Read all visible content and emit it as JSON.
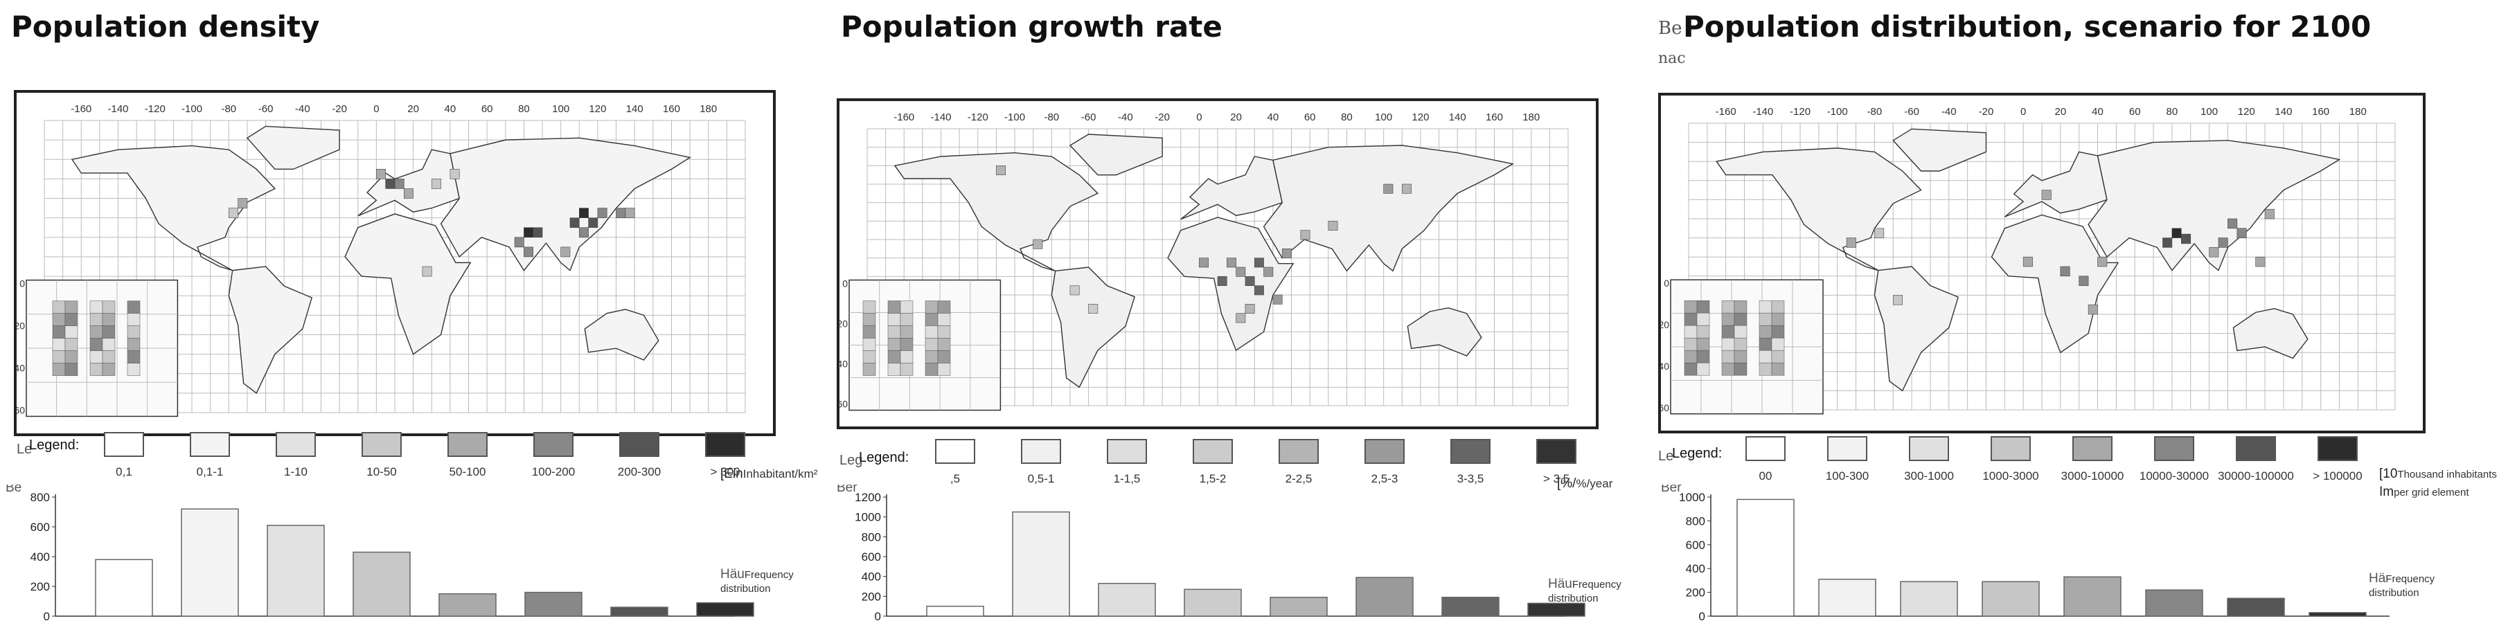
{
  "chart_data": [
    {
      "type": "map",
      "title": "Population density",
      "title_fragment": "",
      "subtitle_fragment": "",
      "map_axis_ticks": [
        "-160",
        "-140",
        "-120",
        "-100",
        "-80",
        "-60",
        "-40",
        "-20",
        "0",
        "20",
        "40",
        "60",
        "80",
        "100",
        "120",
        "140",
        "160",
        "180"
      ],
      "map_lat_ticks": [
        "0",
        "20",
        "40",
        "60"
      ],
      "legend_title": "Legend:",
      "legend_fragment": "Le",
      "legend_classes": [
        "0,1",
        "0,1-1",
        "1-10",
        "10-50",
        "50-100",
        "100-200",
        "200-300",
        "> 300"
      ],
      "unit_fragment": "[Ein",
      "unit_label": "Inhabitant/km²",
      "legend_colors": [
        "#ffffff",
        "#f4f4f4",
        "#e2e2e2",
        "#c8c8c8",
        "#aaaaaa",
        "#888888",
        "#555555",
        "#2c2c2c"
      ],
      "histogram": {
        "type": "bar",
        "fragment": "Be",
        "ylim": [
          0,
          800
        ],
        "yticks": [
          0,
          200,
          400,
          600,
          800
        ],
        "categories": [
          "0,1",
          "0,1-1",
          "1-10",
          "10-50",
          "50-100",
          "100-200",
          "200-300",
          "> 300"
        ],
        "values": [
          380,
          720,
          610,
          430,
          150,
          160,
          60,
          90
        ],
        "freq_fragment_1": "Häu",
        "freq_fragment_2": "verl",
        "freq_label": "Frequency distribution"
      }
    },
    {
      "type": "map",
      "title": "Population growth rate",
      "title_fragment": "",
      "subtitle_fragment": "",
      "map_axis_ticks": [
        "-160",
        "-140",
        "-120",
        "-100",
        "-80",
        "-60",
        "-40",
        "-20",
        "0",
        "20",
        "40",
        "60",
        "80",
        "100",
        "120",
        "140",
        "160",
        "180"
      ],
      "map_lat_ticks": [
        "0",
        "20",
        "40",
        "60"
      ],
      "legend_title": "Legend:",
      "legend_fragment": "Leg",
      "legend_classes": [
        ",5",
        "0,5-1",
        "1-1,5",
        "1,5-2",
        "2-2,5",
        "2,5-3",
        "3-3,5",
        "> 3,5"
      ],
      "unit_fragment": "[%/",
      "unit_label": "%/year",
      "legend_colors": [
        "#ffffff",
        "#f0f0f0",
        "#dedede",
        "#cccccc",
        "#b4b4b4",
        "#9a9a9a",
        "#666666",
        "#333333"
      ],
      "histogram": {
        "type": "bar",
        "fragment": "Ber",
        "ylim": [
          0,
          1200
        ],
        "yticks": [
          0,
          200,
          400,
          600,
          800,
          1000,
          1200
        ],
        "categories": [
          ",5",
          "0,5-1",
          "1-1,5",
          "1,5-2",
          "2-2,5",
          "2,5-3",
          "3-3,5",
          "> 3,5"
        ],
        "values": [
          100,
          1050,
          330,
          270,
          190,
          390,
          190,
          130
        ],
        "freq_fragment_1": "Häu",
        "freq_fragment_2": "verl",
        "freq_label": "Frequency distribution"
      }
    },
    {
      "type": "map",
      "title": "Population distribution, scenario for 2100",
      "title_fragment": "Be",
      "subtitle_fragment": "nac",
      "map_axis_ticks": [
        "-160",
        "-140",
        "-120",
        "-100",
        "-80",
        "-60",
        "-40",
        "-20",
        "0",
        "20",
        "40",
        "60",
        "80",
        "100",
        "120",
        "140",
        "160",
        "180"
      ],
      "map_lat_ticks": [
        "0",
        "20",
        "40",
        "60"
      ],
      "legend_title": "Legend:",
      "legend_fragment": "Le",
      "legend_classes": [
        "00",
        "100-300",
        "300-1000",
        "1000-3000",
        "3000-10000",
        "10000-30000",
        "30000-100000",
        "> 100000"
      ],
      "unit_fragment": "[10",
      "unit_label": "Thousand inhabitants",
      "unit_fragment_2": "Im",
      "unit_label_2": "per grid element",
      "legend_colors": [
        "#ffffff",
        "#f2f2f2",
        "#e0e0e0",
        "#c6c6c6",
        "#a8a8a8",
        "#868686",
        "#555555",
        "#2c2c2c"
      ],
      "histogram": {
        "type": "bar",
        "fragment": "Ber",
        "ylim": [
          0,
          1000
        ],
        "yticks": [
          0,
          200,
          400,
          600,
          800,
          1000
        ],
        "categories": [
          "00",
          "100-300",
          "300-1000",
          "1000-3000",
          "3000-10000",
          "10000-30000",
          "30000-100000",
          "> 100000"
        ],
        "values": [
          980,
          310,
          290,
          290,
          330,
          220,
          150,
          30
        ],
        "freq_fragment_1": "Hä",
        "freq_fragment_2": "ver",
        "freq_label": "Frequency distribution"
      }
    }
  ]
}
